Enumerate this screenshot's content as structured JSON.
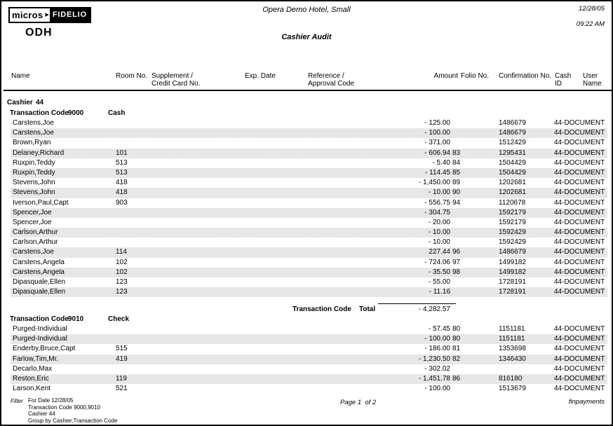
{
  "header": {
    "logo_micros": "micros",
    "logo_fidelio": "FIDELIO",
    "property_code": "ODH",
    "title": "Opera Demo Hotel, Small",
    "subtitle": "Cashier Audit",
    "date": "12/28/05",
    "time": "09:22 AM"
  },
  "icons": {
    "logo_arrow": "▶"
  },
  "colors": {
    "stripe": "#f0f0f0",
    "border": "#000000",
    "text": "#000000"
  },
  "columns": {
    "name": "Name",
    "room": "Room No.",
    "supplement_line1": "Supplement /",
    "supplement_line2": "Credit Card No.",
    "exp_date": "Exp. Date",
    "reference_line1": "Reference /",
    "reference_line2": "Approval Code",
    "amount": "Amount",
    "folio": "Folio No.",
    "confirmation": "Confirmation No.",
    "cash_line1": "Cash",
    "cash_line2": "ID",
    "user_line1": "User",
    "user_line2": "Name"
  },
  "report": {
    "cashier_label": "Cashier",
    "cashier_number": "44",
    "sections": [
      {
        "code_label": "Transaction Code",
        "code": "9000",
        "code_name": "Cash",
        "rows": [
          {
            "name": "Carstens,Joe",
            "room": "",
            "amount": "- 125.00",
            "folio": "",
            "conf": "1486679",
            "user": "44-DOCUMENT"
          },
          {
            "name": "Carstens,Joe",
            "room": "",
            "amount": "- 100.00",
            "folio": "",
            "conf": "1486679",
            "user": "44-DOCUMENT"
          },
          {
            "name": "Brown,Ryan",
            "room": "",
            "amount": "- 371.00",
            "folio": "",
            "conf": "1512429",
            "user": "44-DOCUMENT"
          },
          {
            "name": "Delaney,Richard",
            "room": "101",
            "amount": "- 606.94",
            "folio": "83",
            "conf": "1295431",
            "user": "44-DOCUMENT"
          },
          {
            "name": "Ruxpin,Teddy",
            "room": "513",
            "amount": "- 5.40",
            "folio": "84",
            "conf": "1504429",
            "user": "44-DOCUMENT"
          },
          {
            "name": "Ruxpin,Teddy",
            "room": "513",
            "amount": "- 114.45",
            "folio": "85",
            "conf": "1504429",
            "user": "44-DOCUMENT"
          },
          {
            "name": "Stevens,John",
            "room": "418",
            "amount": "- 1,450.00",
            "folio": "89",
            "conf": "1202681",
            "user": "44-DOCUMENT"
          },
          {
            "name": "Stevens,John",
            "room": "418",
            "amount": "- 10.00",
            "folio": "90",
            "conf": "1202681",
            "user": "44-DOCUMENT"
          },
          {
            "name": "Iverson,Paul,Capt",
            "room": "903",
            "amount": "- 556.75",
            "folio": "94",
            "conf": "1120678",
            "user": "44-DOCUMENT"
          },
          {
            "name": "Spencer,Joe",
            "room": "",
            "amount": "- 304.75",
            "folio": "",
            "conf": "1592179",
            "user": "44-DOCUMENT"
          },
          {
            "name": "Spencer,Joe",
            "room": "",
            "amount": "- 20.00",
            "folio": "",
            "conf": "1592179",
            "user": "44-DOCUMENT"
          },
          {
            "name": "Carlson,Arthur",
            "room": "",
            "amount": "- 10.00",
            "folio": "",
            "conf": "1592429",
            "user": "44-DOCUMENT"
          },
          {
            "name": "Carlson,Arthur",
            "room": "",
            "amount": "- 10.00",
            "folio": "",
            "conf": "1592429",
            "user": "44-DOCUMENT"
          },
          {
            "name": "Carstens,Joe",
            "room": "114",
            "amount": "227.44",
            "folio": "96",
            "conf": "1486679",
            "user": "44-DOCUMENT"
          },
          {
            "name": "Carstens,Angela",
            "room": "102",
            "amount": "- 724.06",
            "folio": "97",
            "conf": "1499182",
            "user": "44-DOCUMENT"
          },
          {
            "name": "Carstens,Angela",
            "room": "102",
            "amount": "- 35.50",
            "folio": "98",
            "conf": "1499182",
            "user": "44-DOCUMENT"
          },
          {
            "name": "Dipasquale,Ellen",
            "room": "123",
            "amount": "- 55.00",
            "folio": "",
            "conf": "1728191",
            "user": "44-DOCUMENT"
          },
          {
            "name": "Dipasquale,Ellen",
            "room": "123",
            "amount": "- 11.16",
            "folio": "",
            "conf": "1728191",
            "user": "44-DOCUMENT"
          }
        ],
        "total": {
          "label": "Transaction Code",
          "total_word": "Total",
          "amount": "- 4,282.57"
        }
      },
      {
        "code_label": "Transaction Code",
        "code": "9010",
        "code_name": "Check",
        "rows": [
          {
            "name": "Purged-Individual",
            "room": "",
            "amount": "- 57.45",
            "folio": "80",
            "conf": "1151181",
            "user": "44-DOCUMENT"
          },
          {
            "name": "Purged-Individual",
            "room": "",
            "amount": "- 100.00",
            "folio": "80",
            "conf": "1151181",
            "user": "44-DOCUMENT"
          },
          {
            "name": "Enderby,Bruce,Capt",
            "room": "515",
            "amount": "- 186.00",
            "folio": "81",
            "conf": "1353698",
            "user": "44-DOCUMENT"
          },
          {
            "name": "Farlow,Tim,Mr.",
            "room": "419",
            "amount": "- 1,230.50",
            "folio": "82",
            "conf": "1346430",
            "user": "44-DOCUMENT"
          },
          {
            "name": "Decarlo,Max",
            "room": "",
            "amount": "- 302.02",
            "folio": "",
            "conf": "",
            "user": "44-DOCUMENT"
          },
          {
            "name": "Reston,Eric",
            "room": "119",
            "amount": "- 1,451.78",
            "folio": "86",
            "conf": "816180",
            "user": "44-DOCUMENT"
          },
          {
            "name": "Larson,Kent",
            "room": "521",
            "amount": "- 100.00",
            "folio": "",
            "conf": "1513679",
            "user": "44-DOCUMENT"
          }
        ]
      }
    ]
  },
  "footer": {
    "filter_label": "Filter",
    "filter_lines": "For Date 12/28/05\nTransaction Code 9000,9010\nCashier 44\nGroup by Cashier,Transaction Code",
    "page_label": "Page 1  of 2",
    "report_name": "finpayments"
  }
}
